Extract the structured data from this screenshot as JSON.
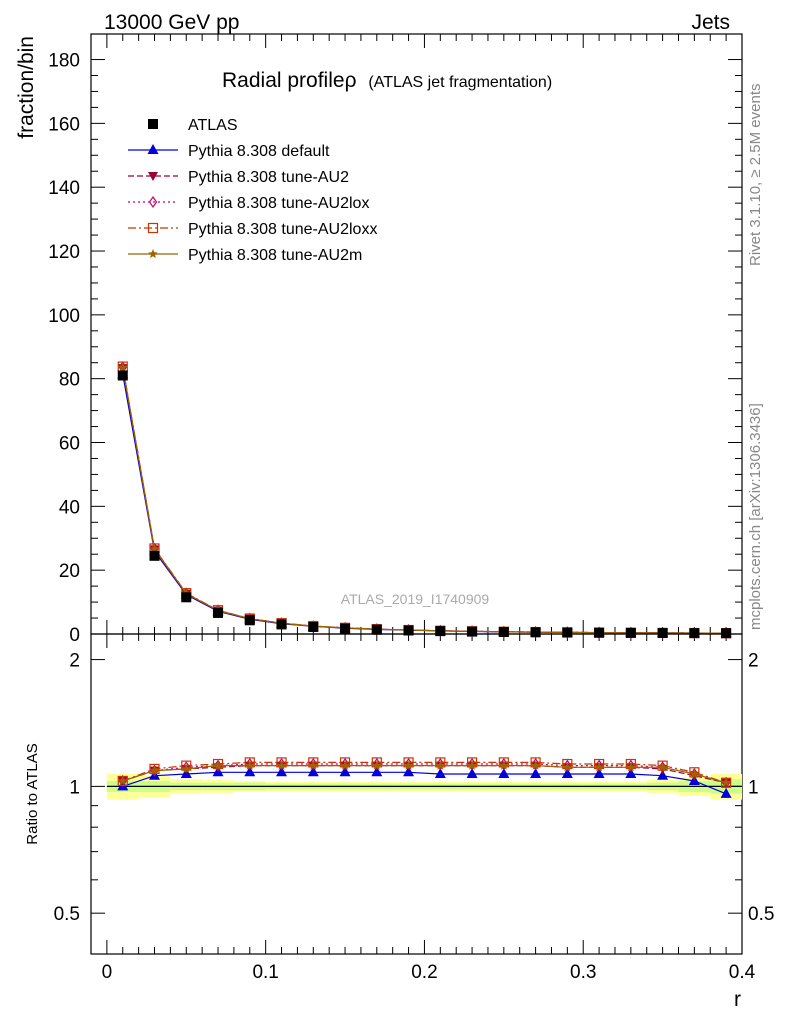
{
  "header": {
    "left": "13000 GeV pp",
    "right": "Jets"
  },
  "side_labels": {
    "rivet": "Rivet 3.1.10, ≥ 2.5M events",
    "mcplots": "mcplots.cern.ch [arXiv:1306.3436]"
  },
  "chart_data": {
    "type": "line",
    "title": "Radial profile",
    "title_symbol": "ρ",
    "subtitle": "(ATLAS jet fragmentation)",
    "watermark": "ATLAS_2019_I1740909",
    "xlabel": "r",
    "ylabel": "fraction/bin",
    "ratio_ylabel": "Ratio to ATLAS",
    "xlim": [
      -0.01,
      0.4
    ],
    "ylim": [
      0,
      188
    ],
    "ratio_ylim": [
      0.4,
      2.3
    ],
    "x_ticks": [
      "0",
      "0.1",
      "0.2",
      "0.3",
      "0.4"
    ],
    "y_ticks": [
      "0",
      "20",
      "40",
      "60",
      "80",
      "100",
      "120",
      "140",
      "160",
      "180"
    ],
    "ratio_ticks": [
      "0.5",
      "1",
      "2"
    ],
    "legend_position": "top-left",
    "x": [
      0.01,
      0.03,
      0.05,
      0.07,
      0.09,
      0.11,
      0.13,
      0.15,
      0.17,
      0.19,
      0.21,
      0.23,
      0.25,
      0.27,
      0.29,
      0.31,
      0.33,
      0.35,
      0.37,
      0.39
    ],
    "data": {
      "name": "ATLAS",
      "values": [
        81.0,
        24.5,
        11.5,
        6.6,
        4.3,
        3.0,
        2.2,
        1.7,
        1.35,
        1.1,
        0.9,
        0.75,
        0.63,
        0.54,
        0.46,
        0.4,
        0.35,
        0.31,
        0.28,
        0.25
      ]
    },
    "series": [
      {
        "name": "Pythia 8.308 default",
        "color": "#0000dd",
        "marker": "triangle-up",
        "dash": "solid",
        "values": [
          81.3,
          25.9,
          12.3,
          7.1,
          4.6,
          3.2,
          2.4,
          1.8,
          1.45,
          1.18,
          0.96,
          0.8,
          0.67,
          0.57,
          0.49,
          0.42,
          0.37,
          0.33,
          0.29,
          0.25
        ],
        "ratio": [
          1.0,
          1.06,
          1.07,
          1.08,
          1.08,
          1.08,
          1.08,
          1.08,
          1.08,
          1.08,
          1.07,
          1.07,
          1.07,
          1.07,
          1.07,
          1.07,
          1.07,
          1.06,
          1.03,
          0.96
        ]
      },
      {
        "name": "Pythia 8.308 tune-AU2",
        "color": "#990033",
        "marker": "triangle-down",
        "dash": "dash",
        "values": [
          83.3,
          26.5,
          12.6,
          7.3,
          4.8,
          3.35,
          2.45,
          1.9,
          1.5,
          1.23,
          1.0,
          0.84,
          0.7,
          0.6,
          0.51,
          0.44,
          0.39,
          0.34,
          0.29,
          0.26
        ],
        "ratio": [
          1.03,
          1.09,
          1.1,
          1.11,
          1.12,
          1.12,
          1.12,
          1.12,
          1.12,
          1.12,
          1.12,
          1.12,
          1.12,
          1.12,
          1.11,
          1.11,
          1.11,
          1.1,
          1.06,
          1.02
        ]
      },
      {
        "name": "Pythia 8.308 tune-AU2lox",
        "color": "#cc0066",
        "marker": "diamond-open",
        "dash": "dot",
        "values": [
          83.6,
          26.7,
          12.7,
          7.4,
          4.8,
          3.38,
          2.47,
          1.92,
          1.52,
          1.24,
          1.01,
          0.85,
          0.71,
          0.61,
          0.52,
          0.45,
          0.39,
          0.35,
          0.3,
          0.26
        ],
        "ratio": [
          1.03,
          1.09,
          1.11,
          1.12,
          1.13,
          1.13,
          1.13,
          1.13,
          1.13,
          1.13,
          1.13,
          1.13,
          1.13,
          1.13,
          1.12,
          1.12,
          1.12,
          1.11,
          1.07,
          1.02
        ]
      },
      {
        "name": "Pythia 8.308 tune-AU2loxx",
        "color": "#cc3300",
        "marker": "square-open",
        "dash": "dashdot",
        "values": [
          83.8,
          26.8,
          12.8,
          7.45,
          4.85,
          3.4,
          2.5,
          1.93,
          1.53,
          1.25,
          1.02,
          0.86,
          0.72,
          0.61,
          0.52,
          0.45,
          0.4,
          0.35,
          0.3,
          0.26
        ],
        "ratio": [
          1.03,
          1.1,
          1.12,
          1.13,
          1.14,
          1.14,
          1.14,
          1.14,
          1.14,
          1.14,
          1.14,
          1.14,
          1.14,
          1.14,
          1.13,
          1.13,
          1.13,
          1.12,
          1.08,
          1.02
        ]
      },
      {
        "name": "Pythia 8.308 tune-AU2m",
        "color": "#996600",
        "marker": "star",
        "dash": "solid",
        "values": [
          83.5,
          26.6,
          12.7,
          7.35,
          4.8,
          3.36,
          2.46,
          1.91,
          1.51,
          1.24,
          1.01,
          0.85,
          0.71,
          0.6,
          0.52,
          0.45,
          0.39,
          0.34,
          0.3,
          0.26
        ],
        "ratio": [
          1.03,
          1.09,
          1.1,
          1.12,
          1.12,
          1.12,
          1.12,
          1.12,
          1.12,
          1.12,
          1.12,
          1.12,
          1.12,
          1.12,
          1.11,
          1.11,
          1.11,
          1.11,
          1.07,
          1.02
        ]
      }
    ],
    "band_inner": [
      0.03,
      0.03,
      0.02,
      0.02,
      0.02,
      0.015,
      0.015,
      0.015,
      0.015,
      0.015,
      0.015,
      0.015,
      0.015,
      0.015,
      0.015,
      0.015,
      0.015,
      0.02,
      0.03,
      0.04
    ],
    "band_outer": [
      0.07,
      0.06,
      0.04,
      0.035,
      0.03,
      0.025,
      0.025,
      0.025,
      0.025,
      0.025,
      0.025,
      0.025,
      0.025,
      0.025,
      0.025,
      0.025,
      0.025,
      0.035,
      0.05,
      0.07
    ]
  }
}
